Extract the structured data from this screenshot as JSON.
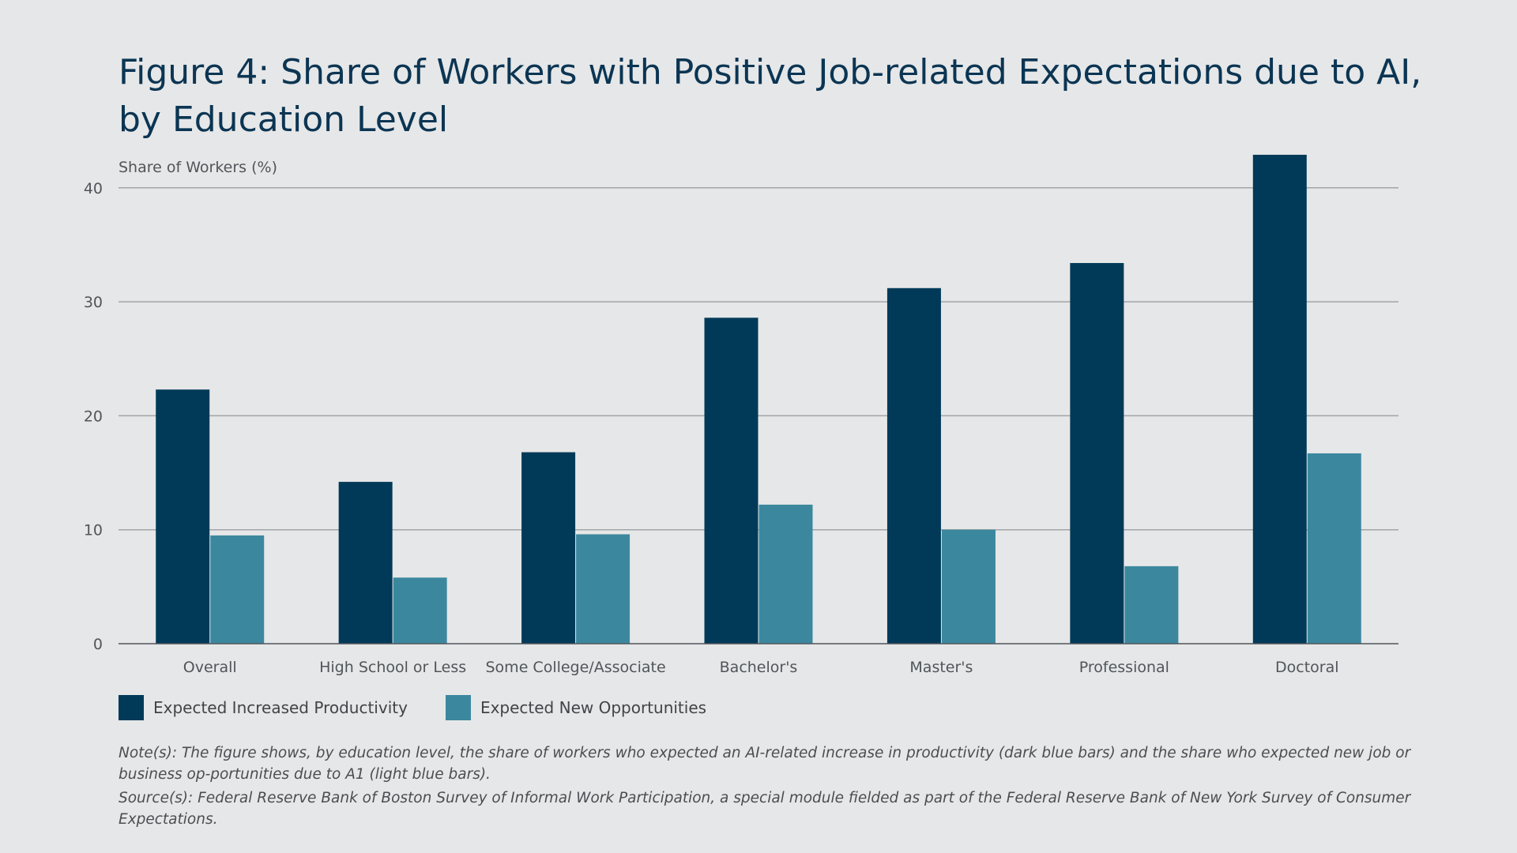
{
  "chart_data": {
    "type": "bar",
    "title": "Figure 4: Share of Workers with Positive Job-related Expectations due to AI, by Education Level",
    "ylabel": "Share of Workers (%)",
    "xlabel": "",
    "ylim": [
      0,
      43
    ],
    "yticks": [
      0,
      10,
      20,
      30,
      40
    ],
    "grid": true,
    "legend_position": "bottom-left",
    "categories": [
      "Overall",
      "High School or Less",
      "Some College/Associate",
      "Bachelor's",
      "Master's",
      "Professional",
      "Doctoral"
    ],
    "series": [
      {
        "name": "Expected Increased Productivity",
        "color": "#013a58",
        "values": [
          22.3,
          14.2,
          16.8,
          28.6,
          31.2,
          33.4,
          42.9
        ]
      },
      {
        "name": "Expected New Opportunities",
        "color": "#3b889e",
        "values": [
          9.5,
          5.8,
          9.6,
          12.2,
          10.0,
          6.8,
          16.7
        ]
      }
    ]
  },
  "notes": {
    "note": "Note(s): The figure shows, by education level, the share of workers who expected an AI-related increase in productivity (dark blue bars) and the share who expected new job or business op-portunities due to A1 (light blue bars).",
    "source": "Source(s): Federal Reserve Bank of Boston Survey of Informal Work Participation, a special module fielded as part of the Federal Reserve Bank of New York Survey of Consumer Expectations."
  }
}
